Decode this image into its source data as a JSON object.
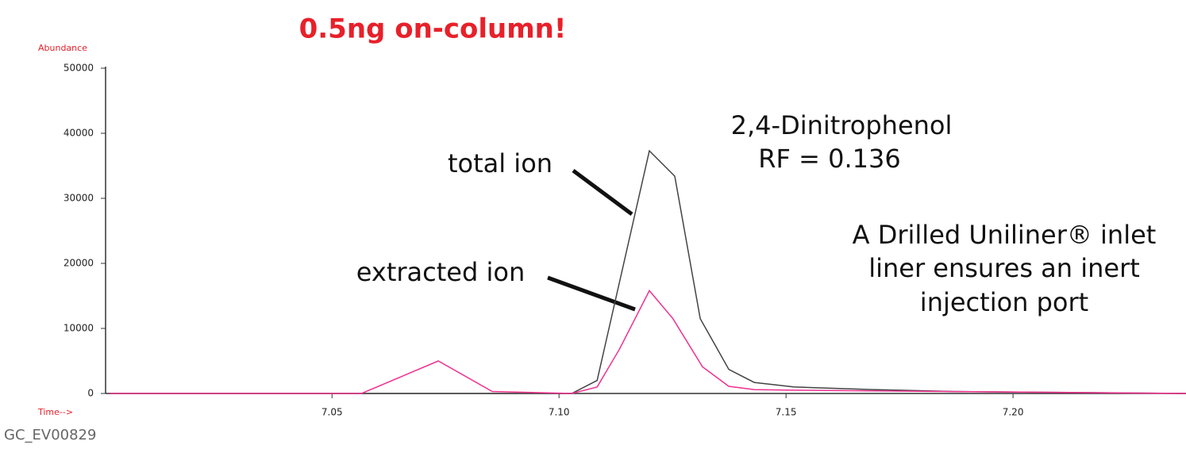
{
  "chart_data": {
    "type": "line",
    "title": "0.5ng on-column!",
    "ylabel": "Abundance",
    "xlabel": "Time-->",
    "footer": "GC_EV00829",
    "xlim": [
      7.001,
      7.2381
    ],
    "ylim": [
      0,
      50000
    ],
    "xticks": [
      7.05,
      {
        "value": 7.1,
        "label": "7.10"
      },
      7.15,
      {
        "value": 7.2,
        "label": "7.20"
      }
    ],
    "yticks": [
      0,
      10000,
      20000,
      30000,
      40000,
      50000
    ],
    "series": [
      {
        "name": "total ion",
        "color": "#444444",
        "x": [
          7.001,
          7.1028,
          7.1084,
          7.1199,
          7.1255,
          7.1311,
          7.1374,
          7.143,
          7.1517,
          7.1692,
          7.1867,
          7.2381
        ],
        "values": [
          0,
          0,
          2000,
          37300,
          33400,
          11500,
          3700,
          1700,
          1000,
          600,
          300,
          0
        ]
      },
      {
        "name": "extracted ion",
        "color": "#f0308f",
        "x": [
          7.001,
          7.0565,
          7.0734,
          7.0853,
          7.1028,
          7.1084,
          7.1133,
          7.1199,
          7.1251,
          7.1316,
          7.1374,
          7.143,
          7.1517,
          7.2381
        ],
        "values": [
          0,
          0,
          5000,
          300,
          0,
          1000,
          6800,
          15800,
          11500,
          4100,
          1100,
          600,
          500,
          0
        ]
      }
    ],
    "annotations": [
      "2,4-Dinitrophenol",
      "RF = 0.136",
      "A Drilled Uniliner® inlet",
      "liner ensures an inert",
      "injection port"
    ]
  }
}
